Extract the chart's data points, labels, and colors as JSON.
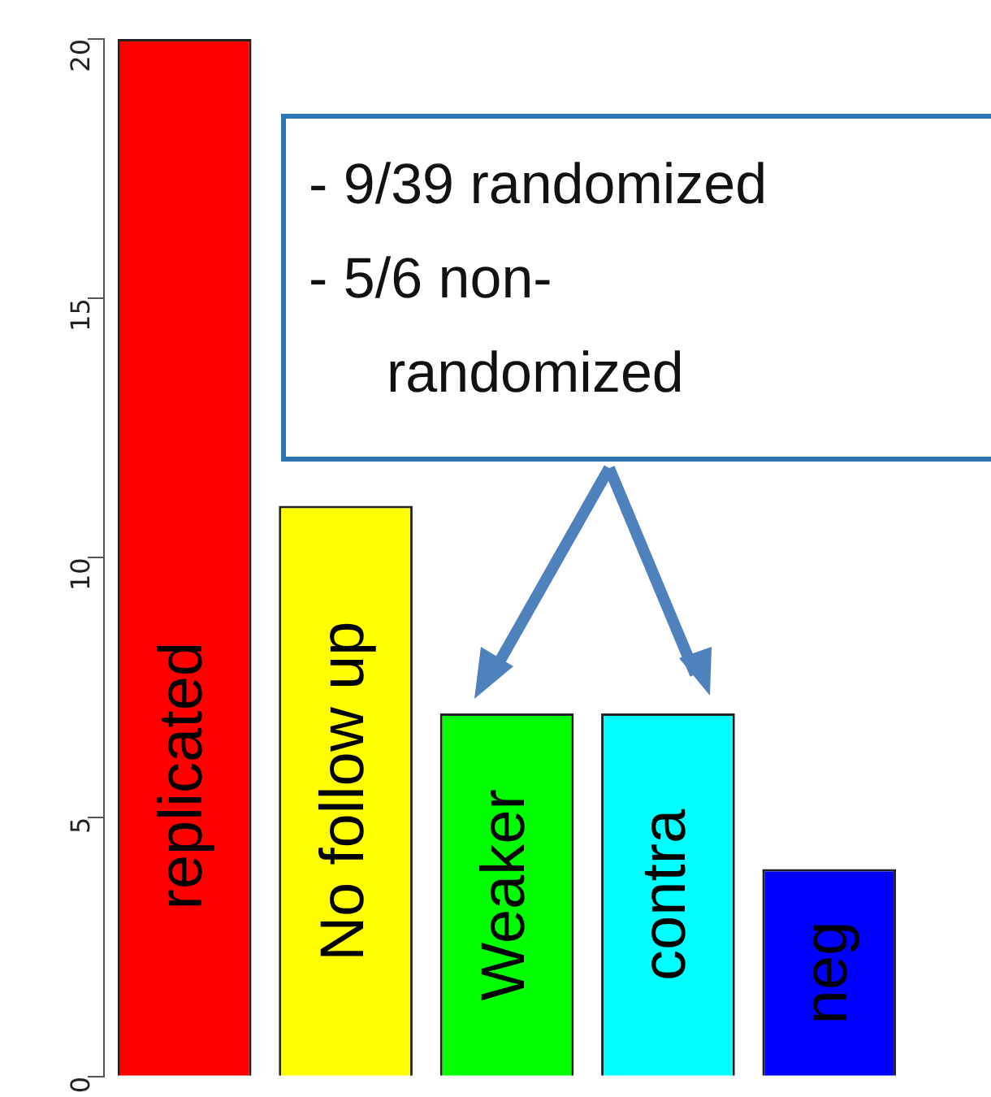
{
  "chart_data": {
    "type": "bar",
    "categories": [
      "replicated",
      "No follow up",
      "Weaker",
      "contra",
      "neg"
    ],
    "values": [
      20,
      11,
      7,
      7,
      4
    ],
    "colors": [
      "#ff0000",
      "#ffff00",
      "#00ff00",
      "#00ffff",
      "#0000ff"
    ],
    "ylim": [
      0,
      20
    ],
    "yticks": [
      0,
      5,
      10,
      15,
      20
    ],
    "grid": false,
    "legend": false,
    "annotations": [
      "- 9/39 randomized",
      "- 5/6 non-randomized"
    ]
  }
}
